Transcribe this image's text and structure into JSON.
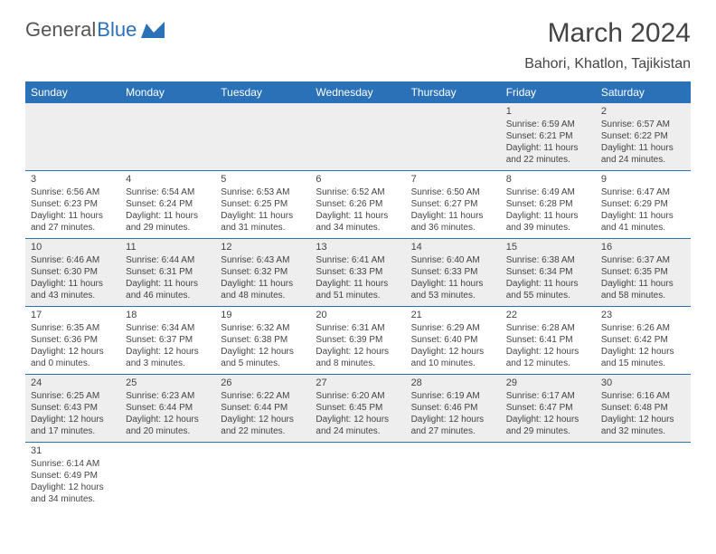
{
  "logo": {
    "text1": "General",
    "text2": "Blue"
  },
  "title": "March 2024",
  "location": "Bahori, Khatlon, Tajikistan",
  "colors": {
    "header_bg": "#2a71b8",
    "header_text": "#ffffff",
    "alt_row_bg": "#eeeeee",
    "border": "#2a71b8",
    "text": "#444444"
  },
  "day_headers": [
    "Sunday",
    "Monday",
    "Tuesday",
    "Wednesday",
    "Thursday",
    "Friday",
    "Saturday"
  ],
  "weeks": [
    [
      null,
      null,
      null,
      null,
      null,
      {
        "n": "1",
        "sr": "6:59 AM",
        "ss": "6:21 PM",
        "dl": "11 hours and 22 minutes."
      },
      {
        "n": "2",
        "sr": "6:57 AM",
        "ss": "6:22 PM",
        "dl": "11 hours and 24 minutes."
      }
    ],
    [
      {
        "n": "3",
        "sr": "6:56 AM",
        "ss": "6:23 PM",
        "dl": "11 hours and 27 minutes."
      },
      {
        "n": "4",
        "sr": "6:54 AM",
        "ss": "6:24 PM",
        "dl": "11 hours and 29 minutes."
      },
      {
        "n": "5",
        "sr": "6:53 AM",
        "ss": "6:25 PM",
        "dl": "11 hours and 31 minutes."
      },
      {
        "n": "6",
        "sr": "6:52 AM",
        "ss": "6:26 PM",
        "dl": "11 hours and 34 minutes."
      },
      {
        "n": "7",
        "sr": "6:50 AM",
        "ss": "6:27 PM",
        "dl": "11 hours and 36 minutes."
      },
      {
        "n": "8",
        "sr": "6:49 AM",
        "ss": "6:28 PM",
        "dl": "11 hours and 39 minutes."
      },
      {
        "n": "9",
        "sr": "6:47 AM",
        "ss": "6:29 PM",
        "dl": "11 hours and 41 minutes."
      }
    ],
    [
      {
        "n": "10",
        "sr": "6:46 AM",
        "ss": "6:30 PM",
        "dl": "11 hours and 43 minutes."
      },
      {
        "n": "11",
        "sr": "6:44 AM",
        "ss": "6:31 PM",
        "dl": "11 hours and 46 minutes."
      },
      {
        "n": "12",
        "sr": "6:43 AM",
        "ss": "6:32 PM",
        "dl": "11 hours and 48 minutes."
      },
      {
        "n": "13",
        "sr": "6:41 AM",
        "ss": "6:33 PM",
        "dl": "11 hours and 51 minutes."
      },
      {
        "n": "14",
        "sr": "6:40 AM",
        "ss": "6:33 PM",
        "dl": "11 hours and 53 minutes."
      },
      {
        "n": "15",
        "sr": "6:38 AM",
        "ss": "6:34 PM",
        "dl": "11 hours and 55 minutes."
      },
      {
        "n": "16",
        "sr": "6:37 AM",
        "ss": "6:35 PM",
        "dl": "11 hours and 58 minutes."
      }
    ],
    [
      {
        "n": "17",
        "sr": "6:35 AM",
        "ss": "6:36 PM",
        "dl": "12 hours and 0 minutes."
      },
      {
        "n": "18",
        "sr": "6:34 AM",
        "ss": "6:37 PM",
        "dl": "12 hours and 3 minutes."
      },
      {
        "n": "19",
        "sr": "6:32 AM",
        "ss": "6:38 PM",
        "dl": "12 hours and 5 minutes."
      },
      {
        "n": "20",
        "sr": "6:31 AM",
        "ss": "6:39 PM",
        "dl": "12 hours and 8 minutes."
      },
      {
        "n": "21",
        "sr": "6:29 AM",
        "ss": "6:40 PM",
        "dl": "12 hours and 10 minutes."
      },
      {
        "n": "22",
        "sr": "6:28 AM",
        "ss": "6:41 PM",
        "dl": "12 hours and 12 minutes."
      },
      {
        "n": "23",
        "sr": "6:26 AM",
        "ss": "6:42 PM",
        "dl": "12 hours and 15 minutes."
      }
    ],
    [
      {
        "n": "24",
        "sr": "6:25 AM",
        "ss": "6:43 PM",
        "dl": "12 hours and 17 minutes."
      },
      {
        "n": "25",
        "sr": "6:23 AM",
        "ss": "6:44 PM",
        "dl": "12 hours and 20 minutes."
      },
      {
        "n": "26",
        "sr": "6:22 AM",
        "ss": "6:44 PM",
        "dl": "12 hours and 22 minutes."
      },
      {
        "n": "27",
        "sr": "6:20 AM",
        "ss": "6:45 PM",
        "dl": "12 hours and 24 minutes."
      },
      {
        "n": "28",
        "sr": "6:19 AM",
        "ss": "6:46 PM",
        "dl": "12 hours and 27 minutes."
      },
      {
        "n": "29",
        "sr": "6:17 AM",
        "ss": "6:47 PM",
        "dl": "12 hours and 29 minutes."
      },
      {
        "n": "30",
        "sr": "6:16 AM",
        "ss": "6:48 PM",
        "dl": "12 hours and 32 minutes."
      }
    ],
    [
      {
        "n": "31",
        "sr": "6:14 AM",
        "ss": "6:49 PM",
        "dl": "12 hours and 34 minutes."
      },
      null,
      null,
      null,
      null,
      null,
      null
    ]
  ],
  "labels": {
    "sunrise": "Sunrise:",
    "sunset": "Sunset:",
    "daylight": "Daylight:"
  }
}
